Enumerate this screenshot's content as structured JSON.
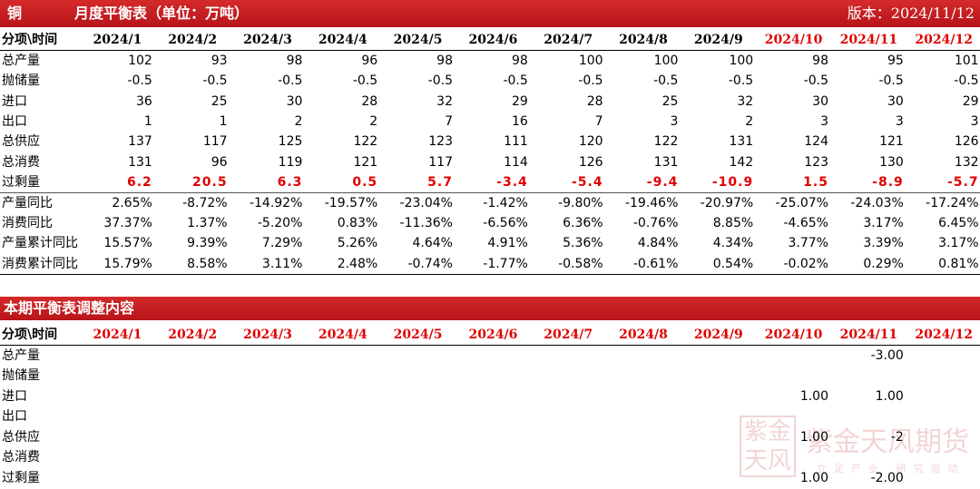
{
  "header": {
    "metal": "铜",
    "title": "月度平衡表（单位：万吨）",
    "version": "版本：2024/11/12"
  },
  "table": {
    "columns": [
      "分项\\时间",
      "2024/1",
      "2024/2",
      "2024/3",
      "2024/4",
      "2024/5",
      "2024/6",
      "2024/7",
      "2024/8",
      "2024/9",
      "2024/10",
      "2024/11",
      "2024/12"
    ],
    "rows": [
      [
        "总产量",
        "102",
        "93",
        "98",
        "96",
        "98",
        "98",
        "100",
        "100",
        "100",
        "98",
        "95",
        "101"
      ],
      [
        "抛储量",
        "-0.5",
        "-0.5",
        "-0.5",
        "-0.5",
        "-0.5",
        "-0.5",
        "-0.5",
        "-0.5",
        "-0.5",
        "-0.5",
        "-0.5",
        "-0.5"
      ],
      [
        "进口",
        "36",
        "25",
        "30",
        "28",
        "32",
        "29",
        "28",
        "25",
        "32",
        "30",
        "30",
        "29"
      ],
      [
        "出口",
        "1",
        "1",
        "2",
        "2",
        "7",
        "16",
        "7",
        "3",
        "2",
        "3",
        "3",
        "3"
      ],
      [
        "总供应",
        "137",
        "117",
        "125",
        "122",
        "123",
        "111",
        "120",
        "122",
        "131",
        "124",
        "121",
        "126"
      ],
      [
        "总消费",
        "131",
        "96",
        "119",
        "121",
        "117",
        "114",
        "126",
        "131",
        "142",
        "123",
        "130",
        "132"
      ],
      [
        "过剩量",
        "6.2",
        "20.5",
        "6.3",
        "0.5",
        "5.7",
        "-3.4",
        "-5.4",
        "-9.4",
        "-10.9",
        "1.5",
        "-8.9",
        "-5.7"
      ],
      [
        "产量同比",
        "2.65%",
        "-8.72%",
        "-14.92%",
        "-19.57%",
        "-23.04%",
        "-1.42%",
        "-9.80%",
        "-19.46%",
        "-20.97%",
        "-25.07%",
        "-24.03%",
        "-17.24%"
      ],
      [
        "消费同比",
        "37.37%",
        "1.37%",
        "-5.20%",
        "0.83%",
        "-11.36%",
        "-6.56%",
        "6.36%",
        "-0.76%",
        "8.85%",
        "-4.65%",
        "3.17%",
        "6.45%"
      ],
      [
        "产量累计同比",
        "15.57%",
        "9.39%",
        "7.29%",
        "5.26%",
        "4.64%",
        "4.91%",
        "5.36%",
        "4.84%",
        "4.34%",
        "3.77%",
        "3.39%",
        "3.17%"
      ],
      [
        "消费累计同比",
        "15.79%",
        "8.58%",
        "3.11%",
        "2.48%",
        "-0.74%",
        "-1.77%",
        "-0.58%",
        "-0.61%",
        "0.54%",
        "-0.02%",
        "0.29%",
        "0.81%"
      ]
    ]
  },
  "adjustments": {
    "title": "本期平衡表调整内容",
    "columns": [
      "分项\\时间",
      "2024/1",
      "2024/2",
      "2024/3",
      "2024/4",
      "2024/5",
      "2024/6",
      "2024/7",
      "2024/8",
      "2024/9",
      "2024/10",
      "2024/11",
      "2024/12"
    ],
    "rows": [
      [
        "总产量",
        null,
        null,
        null,
        null,
        null,
        null,
        null,
        null,
        null,
        null,
        "-3.00",
        null
      ],
      [
        "抛储量",
        null,
        null,
        null,
        null,
        null,
        null,
        null,
        null,
        null,
        null,
        null,
        null
      ],
      [
        "进口",
        null,
        null,
        null,
        null,
        null,
        null,
        null,
        null,
        null,
        "1.00",
        "1.00",
        null
      ],
      [
        "出口",
        null,
        null,
        null,
        null,
        null,
        null,
        null,
        null,
        null,
        null,
        null,
        null
      ],
      [
        "总供应",
        null,
        null,
        null,
        null,
        null,
        null,
        null,
        null,
        null,
        "1.00",
        "-2",
        null
      ],
      [
        "总消费",
        null,
        null,
        null,
        null,
        null,
        null,
        null,
        null,
        null,
        null,
        null,
        null
      ],
      [
        "过剩量",
        null,
        null,
        null,
        null,
        null,
        null,
        null,
        null,
        null,
        "1.00",
        "-2.00",
        null
      ]
    ]
  },
  "watermark": {
    "name": "紫金天风期货",
    "slogan": "立足产业 研究驱动"
  }
}
